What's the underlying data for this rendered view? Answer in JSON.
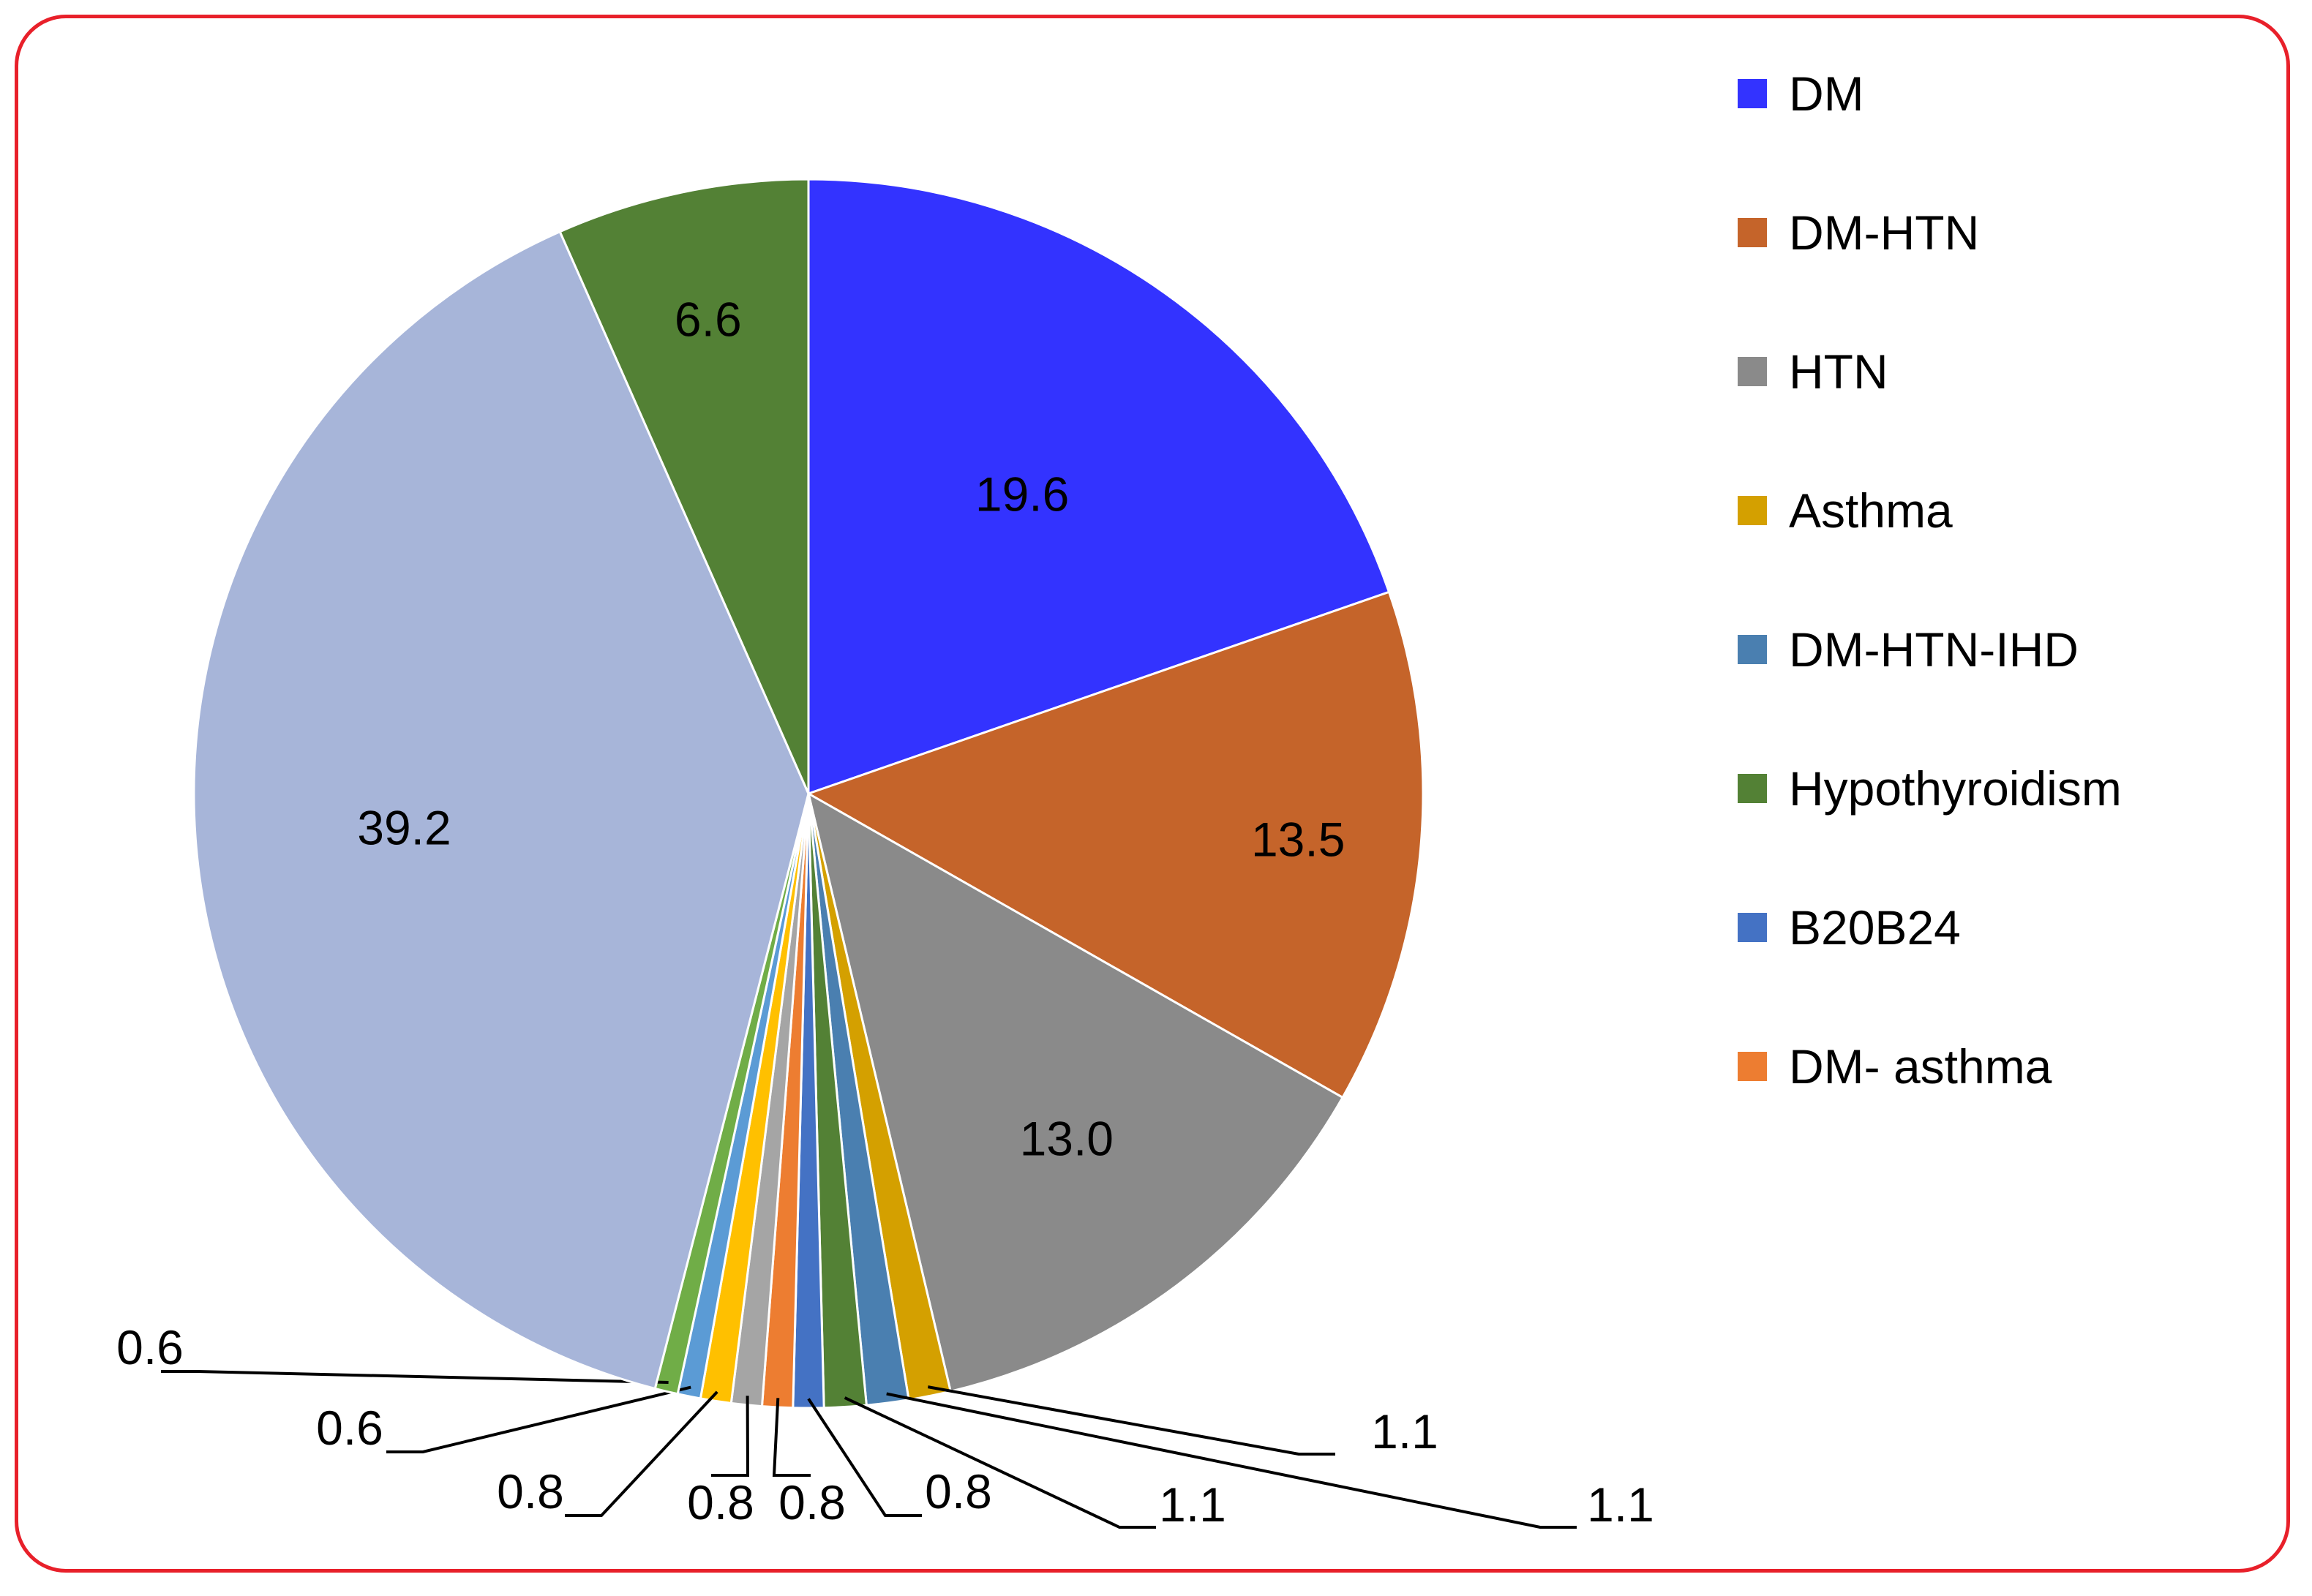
{
  "chart_data": {
    "type": "pie",
    "title": "",
    "start_angle_deg": 0,
    "direction": "clockwise",
    "slices": [
      {
        "name": "DM",
        "value": 19.6,
        "label": "19.6",
        "color": "#3333ff"
      },
      {
        "name": "DM-HTN",
        "value": 13.5,
        "label": "13.5",
        "color": "#c5642a"
      },
      {
        "name": "HTN",
        "value": 13.0,
        "label": "13.0",
        "color": "#8a8a8a"
      },
      {
        "name": "Asthma",
        "value": 1.1,
        "label": "1.1",
        "color": "#d4a000"
      },
      {
        "name": "DM-HTN-IHD",
        "value": 1.1,
        "label": "1.1",
        "color": "#4a7fb0"
      },
      {
        "name": "Hypothyroidism",
        "value": 1.1,
        "label": "1.1",
        "color": "#538135"
      },
      {
        "name": "B20B24",
        "value": 0.8,
        "label": "0.8",
        "color": "#4472c4"
      },
      {
        "name": "DM- asthma",
        "value": 0.8,
        "label": "0.8",
        "color": "#ed7d31"
      },
      {
        "name": "",
        "value": 0.8,
        "label": "0.8",
        "color": "#a5a5a5"
      },
      {
        "name": "",
        "value": 0.8,
        "label": "0.8",
        "color": "#ffc000"
      },
      {
        "name": "",
        "value": 0.6,
        "label": "0.6",
        "color": "#5b9bd5"
      },
      {
        "name": "",
        "value": 0.6,
        "label": "0.6",
        "color": "#70ad47"
      },
      {
        "name": "",
        "value": 39.2,
        "label": "39.2",
        "color": "#a7b5d9"
      },
      {
        "name": "",
        "value": 6.6,
        "label": "6.6",
        "color": "#538135"
      }
    ],
    "legend": {
      "position": "right",
      "entries": [
        {
          "label": "DM",
          "color": "#3333ff"
        },
        {
          "label": "DM-HTN",
          "color": "#c5642a"
        },
        {
          "label": "HTN",
          "color": "#8a8a8a"
        },
        {
          "label": "Asthma",
          "color": "#d4a000"
        },
        {
          "label": "DM-HTN-IHD",
          "color": "#4a7fb0"
        },
        {
          "label": "Hypothyroidism",
          "color": "#538135"
        },
        {
          "label": "B20B24",
          "color": "#4472c4"
        },
        {
          "label": "DM- asthma",
          "color": "#ed7d31"
        }
      ]
    }
  }
}
